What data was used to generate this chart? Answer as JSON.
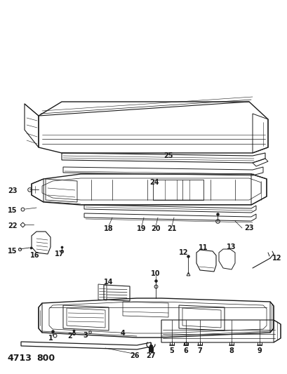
{
  "bg_color": "#ffffff",
  "line_color": "#1a1a1a",
  "part_number": "4713",
  "part_code": "800",
  "figsize": [
    4.1,
    5.33
  ],
  "dpi": 100
}
